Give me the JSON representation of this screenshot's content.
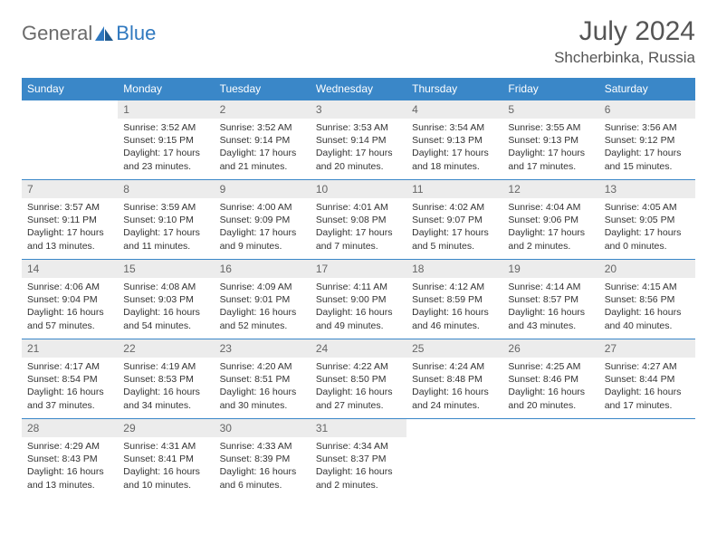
{
  "brand": {
    "general": "General",
    "blue": "Blue"
  },
  "title": {
    "month": "July 2024",
    "location": "Shcherbinka, Russia"
  },
  "colors": {
    "header_bg": "#3a87c8",
    "header_text": "#ffffff",
    "daynum_bg": "#ececec",
    "border": "#3a87c8"
  },
  "weekdays": [
    "Sunday",
    "Monday",
    "Tuesday",
    "Wednesday",
    "Thursday",
    "Friday",
    "Saturday"
  ],
  "weeks": [
    [
      null,
      {
        "n": "1",
        "sr": "3:52 AM",
        "ss": "9:15 PM",
        "dl": "17 hours and 23 minutes."
      },
      {
        "n": "2",
        "sr": "3:52 AM",
        "ss": "9:14 PM",
        "dl": "17 hours and 21 minutes."
      },
      {
        "n": "3",
        "sr": "3:53 AM",
        "ss": "9:14 PM",
        "dl": "17 hours and 20 minutes."
      },
      {
        "n": "4",
        "sr": "3:54 AM",
        "ss": "9:13 PM",
        "dl": "17 hours and 18 minutes."
      },
      {
        "n": "5",
        "sr": "3:55 AM",
        "ss": "9:13 PM",
        "dl": "17 hours and 17 minutes."
      },
      {
        "n": "6",
        "sr": "3:56 AM",
        "ss": "9:12 PM",
        "dl": "17 hours and 15 minutes."
      }
    ],
    [
      {
        "n": "7",
        "sr": "3:57 AM",
        "ss": "9:11 PM",
        "dl": "17 hours and 13 minutes."
      },
      {
        "n": "8",
        "sr": "3:59 AM",
        "ss": "9:10 PM",
        "dl": "17 hours and 11 minutes."
      },
      {
        "n": "9",
        "sr": "4:00 AM",
        "ss": "9:09 PM",
        "dl": "17 hours and 9 minutes."
      },
      {
        "n": "10",
        "sr": "4:01 AM",
        "ss": "9:08 PM",
        "dl": "17 hours and 7 minutes."
      },
      {
        "n": "11",
        "sr": "4:02 AM",
        "ss": "9:07 PM",
        "dl": "17 hours and 5 minutes."
      },
      {
        "n": "12",
        "sr": "4:04 AM",
        "ss": "9:06 PM",
        "dl": "17 hours and 2 minutes."
      },
      {
        "n": "13",
        "sr": "4:05 AM",
        "ss": "9:05 PM",
        "dl": "17 hours and 0 minutes."
      }
    ],
    [
      {
        "n": "14",
        "sr": "4:06 AM",
        "ss": "9:04 PM",
        "dl": "16 hours and 57 minutes."
      },
      {
        "n": "15",
        "sr": "4:08 AM",
        "ss": "9:03 PM",
        "dl": "16 hours and 54 minutes."
      },
      {
        "n": "16",
        "sr": "4:09 AM",
        "ss": "9:01 PM",
        "dl": "16 hours and 52 minutes."
      },
      {
        "n": "17",
        "sr": "4:11 AM",
        "ss": "9:00 PM",
        "dl": "16 hours and 49 minutes."
      },
      {
        "n": "18",
        "sr": "4:12 AM",
        "ss": "8:59 PM",
        "dl": "16 hours and 46 minutes."
      },
      {
        "n": "19",
        "sr": "4:14 AM",
        "ss": "8:57 PM",
        "dl": "16 hours and 43 minutes."
      },
      {
        "n": "20",
        "sr": "4:15 AM",
        "ss": "8:56 PM",
        "dl": "16 hours and 40 minutes."
      }
    ],
    [
      {
        "n": "21",
        "sr": "4:17 AM",
        "ss": "8:54 PM",
        "dl": "16 hours and 37 minutes."
      },
      {
        "n": "22",
        "sr": "4:19 AM",
        "ss": "8:53 PM",
        "dl": "16 hours and 34 minutes."
      },
      {
        "n": "23",
        "sr": "4:20 AM",
        "ss": "8:51 PM",
        "dl": "16 hours and 30 minutes."
      },
      {
        "n": "24",
        "sr": "4:22 AM",
        "ss": "8:50 PM",
        "dl": "16 hours and 27 minutes."
      },
      {
        "n": "25",
        "sr": "4:24 AM",
        "ss": "8:48 PM",
        "dl": "16 hours and 24 minutes."
      },
      {
        "n": "26",
        "sr": "4:25 AM",
        "ss": "8:46 PM",
        "dl": "16 hours and 20 minutes."
      },
      {
        "n": "27",
        "sr": "4:27 AM",
        "ss": "8:44 PM",
        "dl": "16 hours and 17 minutes."
      }
    ],
    [
      {
        "n": "28",
        "sr": "4:29 AM",
        "ss": "8:43 PM",
        "dl": "16 hours and 13 minutes."
      },
      {
        "n": "29",
        "sr": "4:31 AM",
        "ss": "8:41 PM",
        "dl": "16 hours and 10 minutes."
      },
      {
        "n": "30",
        "sr": "4:33 AM",
        "ss": "8:39 PM",
        "dl": "16 hours and 6 minutes."
      },
      {
        "n": "31",
        "sr": "4:34 AM",
        "ss": "8:37 PM",
        "dl": "16 hours and 2 minutes."
      },
      null,
      null,
      null
    ]
  ],
  "labels": {
    "sunrise": "Sunrise: ",
    "sunset": "Sunset: ",
    "daylight": "Daylight: "
  }
}
